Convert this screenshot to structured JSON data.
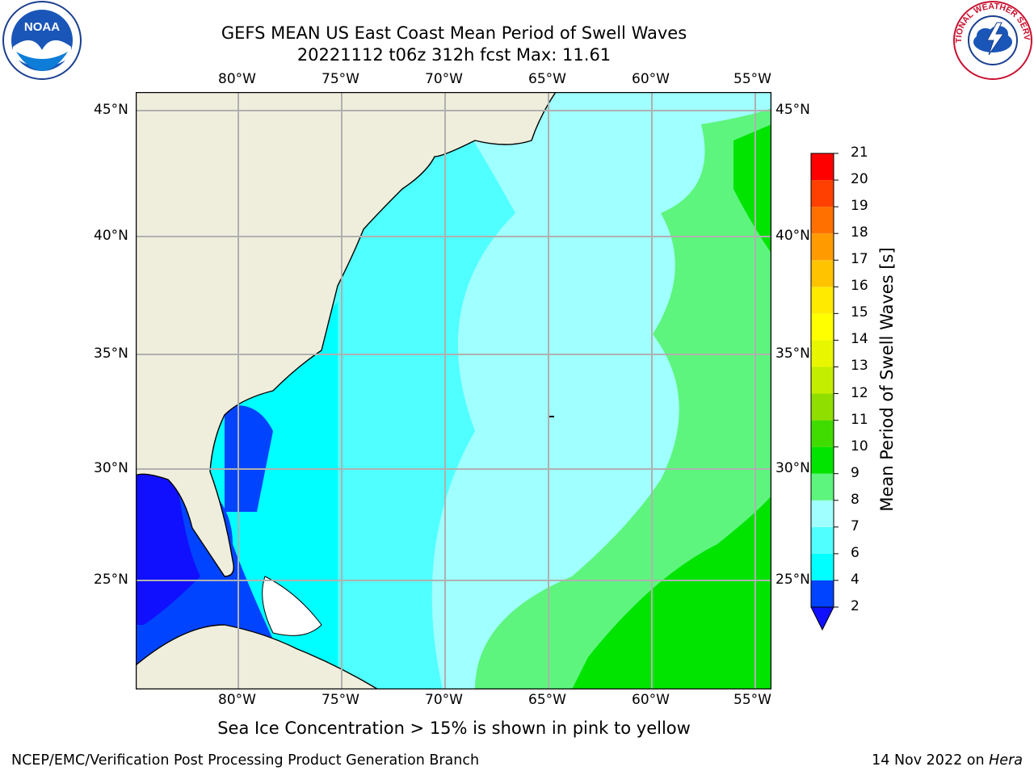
{
  "title": {
    "line1": "GEFS MEAN US East Coast Mean Period of Swell Waves",
    "line2": "20221112 t06z 312h fcst   Max: 11.61"
  },
  "map": {
    "lon_labels": [
      "80°W",
      "75°W",
      "70°W",
      "65°W",
      "60°W",
      "55°W"
    ],
    "lat_labels": [
      "45°N",
      "40°N",
      "35°N",
      "30°N",
      "25°N"
    ],
    "colors": {
      "land": "#efeedc",
      "grid": "#b0b0b0",
      "coast": "#000000",
      "ice_mask": "#ffffff"
    }
  },
  "colorbar": {
    "title": "Mean Period of Swell Waves [s]",
    "ticks": [
      "2",
      "4",
      "6",
      "7",
      "8",
      "9",
      "10",
      "11",
      "12",
      "13",
      "14",
      "15",
      "16",
      "17",
      "18",
      "19",
      "20",
      "21"
    ],
    "colors": [
      "#0044ff",
      "#00ffff",
      "#50ffff",
      "#a0ffff",
      "#5df57d",
      "#00e400",
      "#40dc00",
      "#8fde00",
      "#c4ee00",
      "#e8f700",
      "#ffff00",
      "#ffea00",
      "#ffc300",
      "#ff9b00",
      "#ff7000",
      "#ff4000",
      "#ff0000"
    ],
    "under_color": "#1010ff"
  },
  "subtitle": "Sea Ice Concentration > 15% is shown in pink to yellow",
  "footer": {
    "left": "NCEP/EMC/Verification Post Processing Product Generation Branch",
    "right_prefix": "14 Nov 2022 on ",
    "right_host": "Hera"
  },
  "logos": {
    "left": "NOAA",
    "right": "NATIONAL WEATHER SERVICE"
  }
}
